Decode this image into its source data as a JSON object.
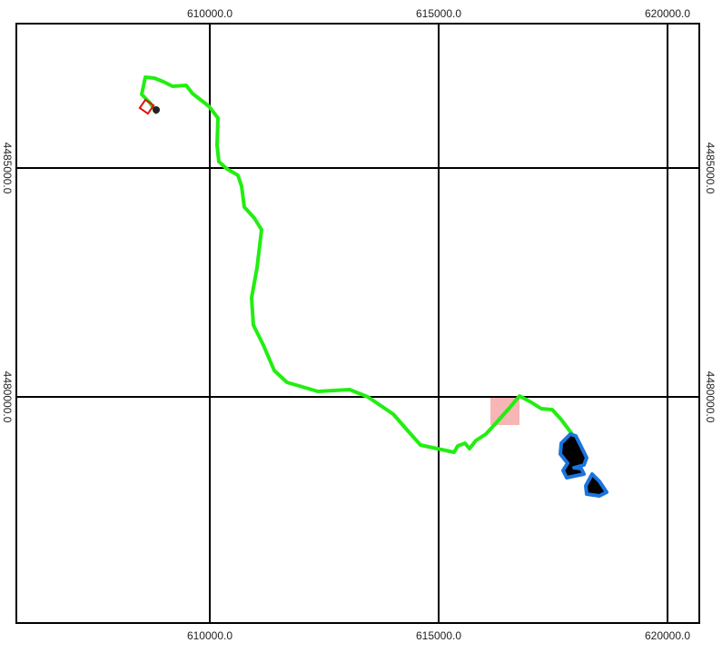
{
  "map": {
    "xlim": [
      605774,
      620694
    ],
    "ylim": [
      4475060,
      4488155
    ],
    "xticks": [
      {
        "value": 610000,
        "label": "610000.0"
      },
      {
        "value": 615000,
        "label": "615000.0"
      },
      {
        "value": 620000,
        "label": "620000.0"
      }
    ],
    "yticks": [
      {
        "value": 4485000,
        "label": "4485000.0"
      },
      {
        "value": 4480000,
        "label": "4480000.0"
      }
    ]
  }
}
